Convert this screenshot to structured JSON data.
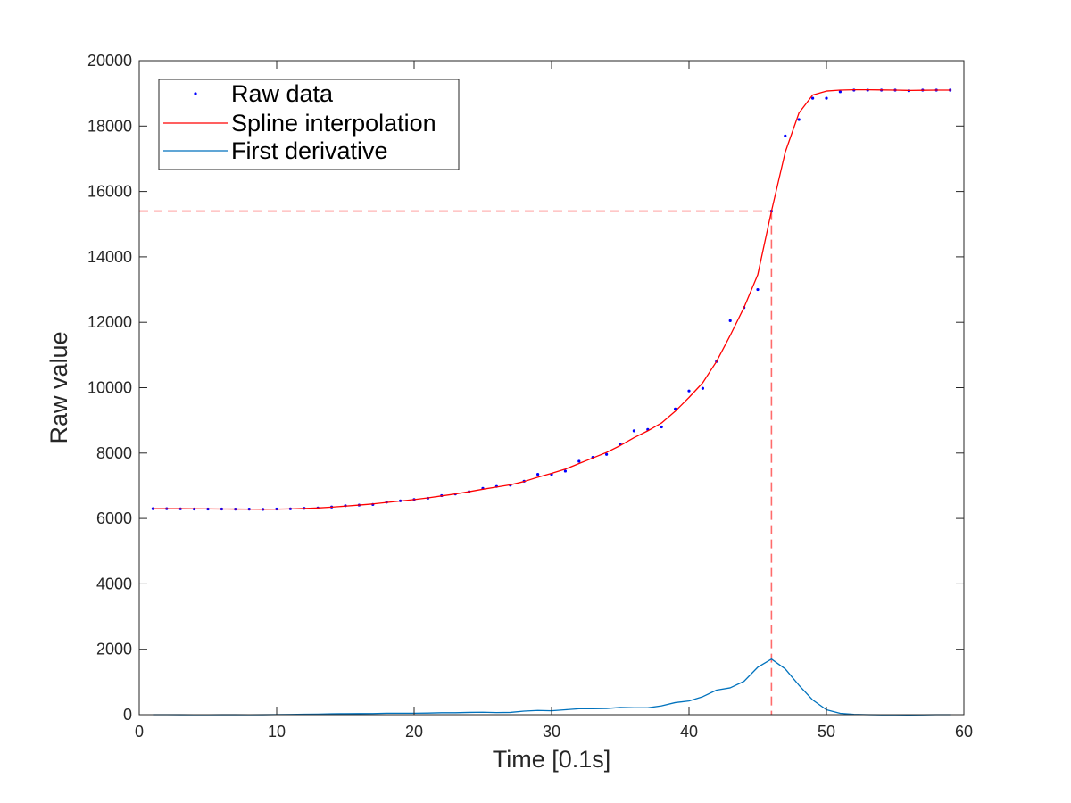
{
  "chart_data": {
    "type": "line",
    "title": "",
    "xlabel": "Time [0.1s]",
    "ylabel": "Raw value",
    "xlim": [
      0,
      60
    ],
    "ylim": [
      0,
      20000
    ],
    "xticks": [
      0,
      10,
      20,
      30,
      40,
      50,
      60
    ],
    "yticks": [
      0,
      2000,
      4000,
      6000,
      8000,
      10000,
      12000,
      14000,
      16000,
      18000,
      20000
    ],
    "xtick_labels": [
      "0",
      "10",
      "20",
      "30",
      "40",
      "50",
      "60"
    ],
    "ytick_labels": [
      "0",
      "2000",
      "4000",
      "6000",
      "8000",
      "10000",
      "12000",
      "14000",
      "16000",
      "18000",
      "20000"
    ],
    "grid": false,
    "legend_position": "top-left",
    "x": [
      1,
      2,
      3,
      4,
      5,
      6,
      7,
      8,
      9,
      10,
      11,
      12,
      13,
      14,
      15,
      16,
      17,
      18,
      19,
      20,
      21,
      22,
      23,
      24,
      25,
      26,
      27,
      28,
      29,
      30,
      31,
      32,
      33,
      34,
      35,
      36,
      37,
      38,
      39,
      40,
      41,
      42,
      43,
      44,
      45,
      46,
      47,
      48,
      49,
      50,
      51,
      52,
      53,
      54,
      55,
      56,
      57,
      58,
      59
    ],
    "series": [
      {
        "name": "Raw data",
        "type": "scatter",
        "color": "#0000ff",
        "values": [
          6300,
          6300,
          6295,
          6290,
          6290,
          6290,
          6285,
          6285,
          6280,
          6290,
          6295,
          6310,
          6320,
          6350,
          6390,
          6410,
          6430,
          6500,
          6540,
          6580,
          6620,
          6700,
          6750,
          6820,
          6920,
          6980,
          7020,
          7140,
          7350,
          7350,
          7450,
          7750,
          7870,
          7960,
          8270,
          8680,
          8720,
          8800,
          9350,
          9900,
          9980,
          10800,
          12050,
          12450,
          13000,
          15400,
          17700,
          18200,
          18850,
          18850,
          19050,
          19100,
          19100,
          19100,
          19100,
          19080,
          19100,
          19100,
          19100
        ]
      },
      {
        "name": "Spline interpolation",
        "type": "line",
        "color": "#ff0000",
        "values": [
          6300,
          6300,
          6298,
          6295,
          6292,
          6290,
          6288,
          6285,
          6283,
          6286,
          6293,
          6305,
          6322,
          6347,
          6378,
          6410,
          6445,
          6490,
          6535,
          6580,
          6630,
          6690,
          6750,
          6820,
          6895,
          6960,
          7030,
          7130,
          7260,
          7380,
          7510,
          7680,
          7850,
          8020,
          8230,
          8470,
          8680,
          8920,
          9280,
          9700,
          10150,
          10800,
          11600,
          12450,
          13450,
          15400,
          17200,
          18400,
          18950,
          19070,
          19100,
          19110,
          19110,
          19105,
          19100,
          19090,
          19095,
          19100,
          19100
        ]
      },
      {
        "name": "First derivative",
        "type": "line",
        "color": "#0072bd",
        "values": [
          0,
          0,
          -2,
          -3,
          -3,
          -2,
          -2,
          -3,
          -2,
          3,
          7,
          12,
          17,
          25,
          31,
          32,
          35,
          45,
          45,
          45,
          50,
          60,
          60,
          70,
          75,
          65,
          70,
          110,
          130,
          120,
          150,
          180,
          180,
          190,
          220,
          210,
          210,
          270,
          370,
          420,
          550,
          750,
          820,
          1020,
          1450,
          1700,
          1400,
          900,
          450,
          150,
          40,
          10,
          0,
          -5,
          -5,
          -10,
          -5,
          0,
          0
        ]
      }
    ],
    "annotations": [
      {
        "type": "reference-lines",
        "style": "dashed",
        "color": "#ff6b6b",
        "x": 46,
        "y": 15400
      }
    ]
  }
}
